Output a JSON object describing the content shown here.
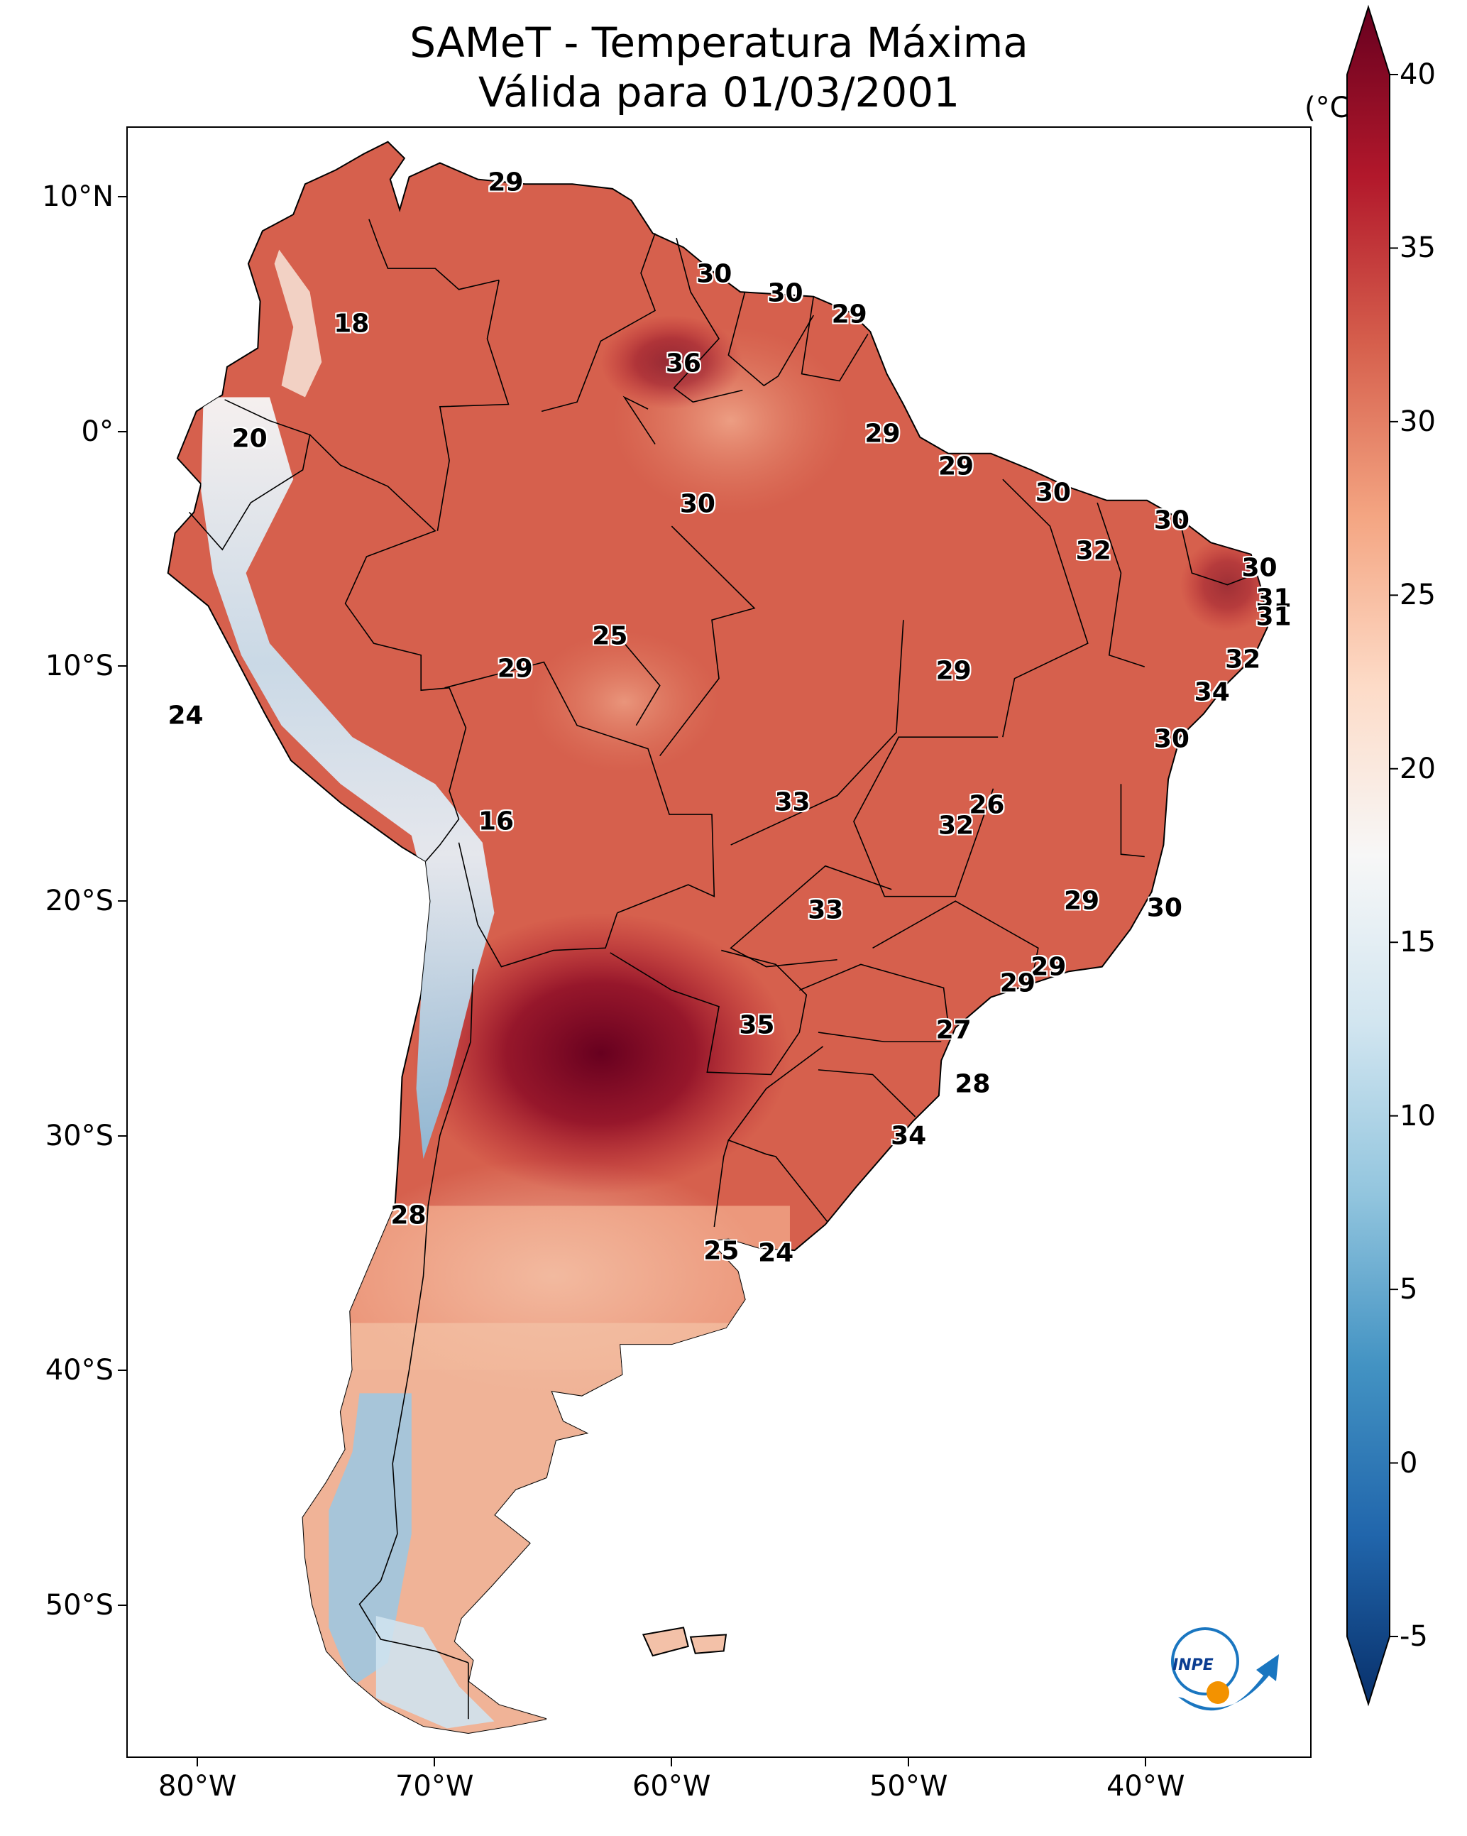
{
  "title": "SAMeT - Temperatura Máxima",
  "subtitle": "Válida para 01/03/2001",
  "logo_text": "INPE",
  "lat_ticks": [
    {
      "value": 10,
      "label": "10°N"
    },
    {
      "value": 0,
      "label": "0°"
    },
    {
      "value": -10,
      "label": "10°S"
    },
    {
      "value": -20,
      "label": "20°S"
    },
    {
      "value": -30,
      "label": "30°S"
    },
    {
      "value": -40,
      "label": "40°S"
    },
    {
      "value": -50,
      "label": "50°S"
    }
  ],
  "lon_ticks": [
    {
      "value": -80,
      "label": "80°W"
    },
    {
      "value": -70,
      "label": "70°W"
    },
    {
      "value": -60,
      "label": "60°W"
    },
    {
      "value": -50,
      "label": "50°W"
    },
    {
      "value": -40,
      "label": "40°W"
    }
  ],
  "extent": {
    "lon": [
      -83,
      -33
    ],
    "lat": [
      -56.5,
      13
    ]
  },
  "colorbar": {
    "unit": "(°C)",
    "min": -5,
    "max": 40,
    "ticks": [
      40,
      35,
      30,
      25,
      20,
      15,
      10,
      5,
      0,
      -5
    ],
    "colors": [
      "#08306b",
      "#2166ac",
      "#4393c3",
      "#92c5de",
      "#d1e5f0",
      "#f7f7f7",
      "#fddbc7",
      "#f4a582",
      "#d6604d",
      "#b2182b",
      "#67001f"
    ]
  },
  "contour_labels": [
    {
      "text": "29",
      "lon": -67.0,
      "lat": 10.6
    },
    {
      "text": "30",
      "lon": -58.2,
      "lat": 6.7
    },
    {
      "text": "30",
      "lon": -55.2,
      "lat": 5.9
    },
    {
      "text": "29",
      "lon": -52.5,
      "lat": 5.0
    },
    {
      "text": "18",
      "lon": -73.5,
      "lat": 4.6
    },
    {
      "text": "36",
      "lon": -59.5,
      "lat": 2.9
    },
    {
      "text": "20",
      "lon": -77.8,
      "lat": -0.3
    },
    {
      "text": "29",
      "lon": -51.1,
      "lat": -0.1
    },
    {
      "text": "29",
      "lon": -48.0,
      "lat": -1.5
    },
    {
      "text": "30",
      "lon": -58.9,
      "lat": -3.1
    },
    {
      "text": "30",
      "lon": -43.9,
      "lat": -2.6
    },
    {
      "text": "30",
      "lon": -38.9,
      "lat": -3.8
    },
    {
      "text": "32",
      "lon": -42.2,
      "lat": -5.1
    },
    {
      "text": "30",
      "lon": -35.2,
      "lat": -5.8
    },
    {
      "text": "31",
      "lon": -34.6,
      "lat": -7.1
    },
    {
      "text": "31",
      "lon": -34.6,
      "lat": -7.9
    },
    {
      "text": "25",
      "lon": -62.6,
      "lat": -8.7
    },
    {
      "text": "32",
      "lon": -35.9,
      "lat": -9.7
    },
    {
      "text": "29",
      "lon": -66.6,
      "lat": -10.1
    },
    {
      "text": "29",
      "lon": -48.1,
      "lat": -10.2
    },
    {
      "text": "34",
      "lon": -37.2,
      "lat": -11.1
    },
    {
      "text": "24",
      "lon": -80.5,
      "lat": -12.1
    },
    {
      "text": "30",
      "lon": -38.9,
      "lat": -13.1
    },
    {
      "text": "33",
      "lon": -54.9,
      "lat": -15.8
    },
    {
      "text": "26",
      "lon": -46.7,
      "lat": -15.9
    },
    {
      "text": "32",
      "lon": -48.0,
      "lat": -16.8
    },
    {
      "text": "16",
      "lon": -67.4,
      "lat": -16.6
    },
    {
      "text": "29",
      "lon": -42.7,
      "lat": -20.0
    },
    {
      "text": "33",
      "lon": -53.5,
      "lat": -20.4
    },
    {
      "text": "30",
      "lon": -39.2,
      "lat": -20.3
    },
    {
      "text": "29",
      "lon": -44.1,
      "lat": -22.8
    },
    {
      "text": "29",
      "lon": -45.4,
      "lat": -23.5
    },
    {
      "text": "35",
      "lon": -56.4,
      "lat": -25.3
    },
    {
      "text": "27",
      "lon": -48.1,
      "lat": -25.5
    },
    {
      "text": "28",
      "lon": -47.3,
      "lat": -27.8
    },
    {
      "text": "34",
      "lon": -50.0,
      "lat": -30.0
    },
    {
      "text": "28",
      "lon": -71.1,
      "lat": -33.4
    },
    {
      "text": "25",
      "lon": -57.9,
      "lat": -34.9
    },
    {
      "text": "24",
      "lon": -55.6,
      "lat": -35.0
    }
  ]
}
